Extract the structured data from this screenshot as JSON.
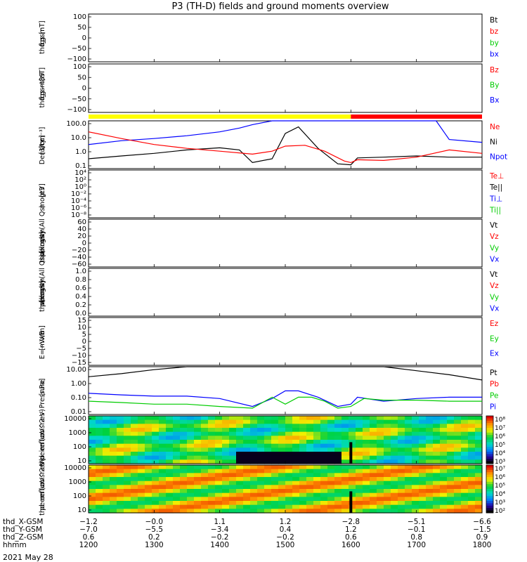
{
  "chart_data": {
    "type": "line",
    "title": "P3 (TH-D) fields and ground moments overview",
    "date": "2021 May 28",
    "panels": [
      {
        "key": "fgs",
        "ylabel": [
          "thd",
          "fgs",
          "gsm",
          "[nT]"
        ],
        "yscale": "linear",
        "ylim": [
          -100,
          100
        ],
        "ticks": [
          "100",
          "50",
          "0",
          "−50",
          "−100"
        ],
        "legend": [
          {
            "label": "Bt",
            "color": "#000000"
          },
          {
            "label": "bz",
            "color": "#ff0000"
          },
          {
            "label": "by",
            "color": "#00cc00"
          },
          {
            "label": "bx",
            "color": "#0000ff"
          }
        ]
      },
      {
        "key": "fgs_t89",
        "ylabel": [
          "thd",
          "fgs",
          "gsm",
          "−t89",
          "[nT]"
        ],
        "yscale": "linear",
        "ylim": [
          -125,
          100
        ],
        "ticks": [
          "100",
          "50",
          "0",
          "−50",
          "−100"
        ],
        "legend": [
          {
            "label": "Bz",
            "color": "#ff0000"
          },
          {
            "label": "By",
            "color": "#00cc00"
          },
          {
            "label": "Bx",
            "color": "#0000ff"
          }
        ]
      },
      {
        "key": "density",
        "ylabel": [
          "Density",
          "[1/cc]",
          "[cm⁻³]"
        ],
        "yscale": "log",
        "ylim": [
          0.05,
          300
        ],
        "ticks": [
          "100.0",
          "10.0",
          "1.0",
          "0.1"
        ],
        "legend": [
          {
            "label": "Ne",
            "color": "#ff0000"
          },
          {
            "label": "Ni",
            "color": "#000000"
          },
          {
            "label": "Npot",
            "color": "#0000ff"
          }
        ]
      },
      {
        "key": "temp",
        "ylabel": [
          "mogt3",
          "[eV]"
        ],
        "yscale": "log",
        "ylim": [
          1e-09,
          10000
        ],
        "ticks": [
          "10⁴",
          "10²",
          "10⁰",
          "10⁻²",
          "10⁻⁴",
          "10⁻⁶",
          "10⁻⁸"
        ],
        "legend": [
          {
            "label": "Te⊥",
            "color": "#ff0000"
          },
          {
            "label": "Te||",
            "color": "#000000"
          },
          {
            "label": "Ti⊥",
            "color": "#0000ff"
          },
          {
            "label": "Ti||",
            "color": "#00cc00"
          }
        ]
      },
      {
        "key": "peir_vel",
        "ylabel": [
          "thd",
          "peir",
          "velocity",
          "gsm",
          "[km/s] (All Qs)"
        ],
        "yscale": "linear",
        "ylim": [
          -60,
          60
        ],
        "ticks": [
          "60",
          "40",
          "20",
          "0",
          "−20",
          "−40",
          "−60"
        ],
        "legend": [
          {
            "label": "Vt",
            "color": "#000000"
          },
          {
            "label": "Vz",
            "color": "#ff0000"
          },
          {
            "label": "Vy",
            "color": "#00cc00"
          },
          {
            "label": "Vx",
            "color": "#0000ff"
          }
        ]
      },
      {
        "key": "peer_vel",
        "ylabel": [
          "thd",
          "peer",
          "velocity",
          "gsm",
          "[km/s] (All Qs)"
        ],
        "yscale": "linear",
        "ylim": [
          0,
          1
        ],
        "ticks": [
          "1.0",
          "0.8",
          "0.6",
          "0.4",
          "0.2",
          "0.0"
        ],
        "legend": [
          {
            "label": "Vt",
            "color": "#000000"
          },
          {
            "label": "Vz",
            "color": "#ff0000"
          },
          {
            "label": "Vy",
            "color": "#00cc00"
          },
          {
            "label": "Vx",
            "color": "#0000ff"
          }
        ]
      },
      {
        "key": "efield",
        "ylabel": [
          "E=−VxB",
          "[mV/m]"
        ],
        "yscale": "linear",
        "ylim": [
          -15,
          15
        ],
        "ticks": [
          "15",
          "10",
          "5",
          "0",
          "−5",
          "−10",
          "−15"
        ],
        "legend": [
          {
            "label": "Ez",
            "color": "#ff0000"
          },
          {
            "label": "Ey",
            "color": "#00cc00"
          },
          {
            "label": "Ex",
            "color": "#0000ff"
          }
        ]
      },
      {
        "key": "pressure",
        "ylabel": [
          "Pressure",
          "[nPa]"
        ],
        "yscale": "log",
        "ylim": [
          0.005,
          20
        ],
        "ticks": [
          "10.00",
          "1.00",
          "0.10",
          "0.01"
        ],
        "legend": [
          {
            "label": "Pt",
            "color": "#000000"
          },
          {
            "label": "Pb",
            "color": "#ff0000"
          },
          {
            "label": "Pe",
            "color": "#00cc00"
          },
          {
            "label": "Pi",
            "color": "#0000ff"
          }
        ]
      },
      {
        "key": "peir_eflux",
        "type": "heatmap",
        "ylabel": [
          "thd",
          "peir",
          "en",
          "eflux",
          "eV",
          "(cm^2-s-",
          "sr-eV)"
        ],
        "yscale": "log",
        "ylim": [
          5,
          20000
        ],
        "ticks": [
          "10000",
          "1000",
          "100",
          "10"
        ],
        "colorbar_ticks": [
          "10⁸",
          "10⁷",
          "10⁶",
          "10⁵",
          "10⁴",
          "10³"
        ],
        "colorbar_label": "[eV/(cm^2-s-sr-eV)] (All Qs)"
      },
      {
        "key": "peer_eflux",
        "type": "heatmap",
        "ylabel": [
          "thd",
          "peer",
          "en",
          "eflux",
          "eV",
          "(cm^2-s-",
          "sr-eV)"
        ],
        "yscale": "log",
        "ylim": [
          5,
          20000
        ],
        "ticks": [
          "10000",
          "1000",
          "100",
          "10"
        ],
        "colorbar_ticks": [
          "10⁷",
          "10⁶",
          "10⁵",
          "10⁴",
          "10³",
          "10²"
        ],
        "colorbar_label": "[eV/(cm^2-s-sr-eV)]"
      }
    ],
    "mode_bar": [
      {
        "from": "12:00",
        "to": "16:00",
        "color": "#ffff00"
      },
      {
        "from": "16:00",
        "to": "18:00",
        "color": "#ff0000"
      }
    ],
    "x_axis": {
      "hours": [
        12,
        13,
        14,
        15,
        16,
        17,
        18
      ],
      "rows": [
        {
          "label": "thd_X-GSM",
          "values": [
            "−1.2",
            "−0.0",
            "1.1",
            "1.2",
            "−2.8",
            "−5.1",
            "−6.6"
          ]
        },
        {
          "label": "thd_Y-GSM",
          "values": [
            "−7.0",
            "−5.5",
            "−3.4",
            "0.4",
            "1.2",
            "−0.1",
            "−1.5"
          ]
        },
        {
          "label": "thd_Z-GSM",
          "values": [
            "0.6",
            "0.2",
            "−0.2",
            "−0.2",
            "0.6",
            "0.8",
            "0.9"
          ]
        },
        {
          "label": "hhmm",
          "values": [
            "1200",
            "1300",
            "1400",
            "1500",
            "1600",
            "1700",
            "1800"
          ]
        }
      ]
    },
    "series": [
      {
        "panel": "density",
        "name": "Npot",
        "x": [
          12.0,
          12.5,
          13.0,
          13.5,
          14.0,
          14.3,
          14.5,
          14.8,
          15.0,
          15.2,
          15.5,
          15.8,
          16.0,
          16.1,
          16.5,
          17.0,
          17.3,
          17.5,
          18.0
        ],
        "y": [
          4,
          8,
          12,
          20,
          40,
          80,
          150,
          300,
          300,
          300,
          300,
          300,
          300,
          300,
          300,
          300,
          300,
          10,
          6
        ]
      },
      {
        "panel": "density",
        "name": "Ni",
        "x": [
          12.0,
          12.5,
          13.0,
          13.5,
          14.0,
          14.3,
          14.5,
          14.8,
          15.0,
          15.2,
          15.5,
          15.8,
          16.0,
          16.1,
          16.5,
          17.0,
          17.5,
          18.0
        ],
        "y": [
          0.3,
          0.5,
          0.8,
          1.5,
          2.2,
          1.5,
          0.15,
          0.3,
          30,
          100,
          2,
          0.12,
          0.1,
          0.35,
          0.4,
          0.5,
          0.4,
          0.4
        ]
      },
      {
        "panel": "density",
        "name": "Ne",
        "x": [
          12.0,
          12.5,
          13.0,
          13.5,
          14.0,
          14.5,
          14.8,
          15.0,
          15.3,
          15.6,
          15.9,
          16.0,
          16.1,
          16.5,
          17.0,
          17.5,
          18.0
        ],
        "y": [
          40,
          12,
          4,
          2,
          1.2,
          0.7,
          1.2,
          3,
          3.5,
          1.2,
          0.2,
          0.15,
          0.25,
          0.22,
          0.4,
          1.5,
          0.8
        ]
      },
      {
        "panel": "pressure",
        "name": "Pt",
        "x": [
          12.0,
          12.5,
          13.0,
          13.5,
          14.0,
          14.5,
          15.0,
          15.5,
          16.0,
          16.5,
          17.0,
          17.5,
          18.0
        ],
        "y": [
          3.5,
          6,
          12,
          20,
          20,
          20,
          20,
          20,
          20,
          20,
          10,
          5,
          2
        ]
      },
      {
        "panel": "pressure",
        "name": "Pi",
        "x": [
          12.0,
          12.5,
          13.0,
          13.5,
          14.0,
          14.5,
          14.8,
          15.0,
          15.2,
          15.5,
          15.8,
          16.0,
          16.1,
          16.5,
          17.0,
          17.5,
          18.0
        ],
        "y": [
          0.2,
          0.15,
          0.12,
          0.12,
          0.08,
          0.02,
          0.08,
          0.3,
          0.3,
          0.1,
          0.02,
          0.03,
          0.1,
          0.05,
          0.08,
          0.1,
          0.1
        ]
      },
      {
        "panel": "pressure",
        "name": "Pe",
        "x": [
          12.0,
          12.5,
          13.0,
          13.5,
          14.0,
          14.5,
          14.8,
          15.0,
          15.2,
          15.4,
          15.6,
          15.8,
          16.0,
          16.2,
          16.5,
          17.0,
          17.5,
          18.0
        ],
        "y": [
          0.05,
          0.04,
          0.03,
          0.03,
          0.02,
          0.015,
          0.1,
          0.03,
          0.1,
          0.1,
          0.05,
          0.015,
          0.02,
          0.08,
          0.06,
          0.06,
          0.05,
          0.05
        ]
      }
    ]
  }
}
